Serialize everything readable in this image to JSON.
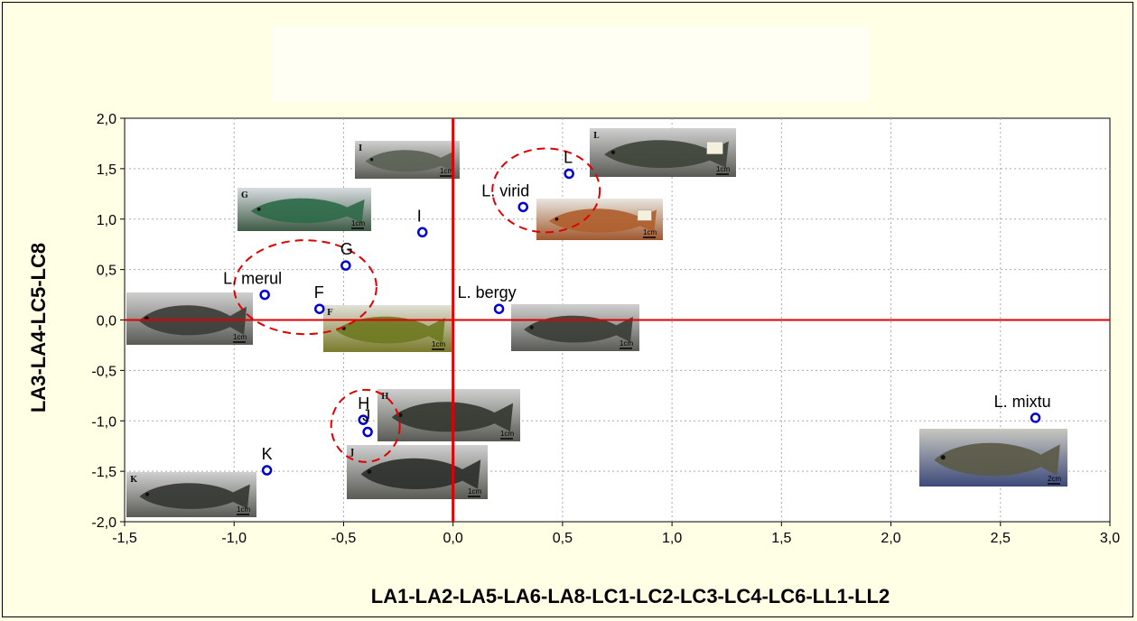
{
  "chart_data": {
    "type": "scatter",
    "title": "",
    "xlabel": "LA1-LA2-LA5-LA6-LA8-LC1-LC2-LC3-LC4-LC6-LL1-LL2",
    "ylabel": "LA3-LA4-LC5-LC8",
    "xlim": [
      -1.5,
      3.0
    ],
    "ylim": [
      -2.0,
      2.0
    ],
    "x_ticks": [
      "-1,5",
      "-1,0",
      "-0,5",
      "0,0",
      "0,5",
      "1,0",
      "1,5",
      "2,0",
      "2,5",
      "3,0"
    ],
    "y_ticks": [
      "2,0",
      "1,5",
      "1,0",
      "0,5",
      "0,0",
      "-0,5",
      "-1,0",
      "-1,5",
      "-2,0"
    ],
    "grid": true,
    "reference_lines": {
      "x": 0.0,
      "y": 0.0,
      "color": "#e00000"
    },
    "marker_color": "#0000cc",
    "points": [
      {
        "label": "L",
        "x": 0.53,
        "y": 1.45
      },
      {
        "label": "L. virid",
        "x": 0.32,
        "y": 1.12
      },
      {
        "label": "I",
        "x": -0.14,
        "y": 0.87
      },
      {
        "label": "G",
        "x": -0.49,
        "y": 0.54
      },
      {
        "label": "L. merul",
        "x": -0.86,
        "y": 0.25
      },
      {
        "label": "F",
        "x": -0.61,
        "y": 0.11
      },
      {
        "label": "L. bergy",
        "x": 0.21,
        "y": 0.11
      },
      {
        "label": "H",
        "x": -0.41,
        "y": -0.99
      },
      {
        "label": "J",
        "x": -0.39,
        "y": -1.11
      },
      {
        "label": "K",
        "x": -0.85,
        "y": -1.49
      },
      {
        "label": "L. mixtu",
        "x": 2.66,
        "y": -0.97
      }
    ],
    "groups": [
      {
        "name": "",
        "members": [
          "L",
          "L. virid"
        ]
      },
      {
        "name": "",
        "members": [
          "G",
          "L. merul",
          "F"
        ]
      },
      {
        "name": "",
        "members": [
          "H",
          "J"
        ]
      }
    ],
    "photo_tags": [
      {
        "letter": "I",
        "scale": "1cm"
      },
      {
        "letter": "L",
        "scale": "1cm"
      },
      {
        "letter": "G",
        "scale": "1cm"
      },
      {
        "letter": "",
        "scale": "1cm"
      },
      {
        "letter": "",
        "scale": "1cm"
      },
      {
        "letter": "F",
        "scale": "1cm"
      },
      {
        "letter": "",
        "scale": "1cm"
      },
      {
        "letter": "H",
        "scale": "1cm"
      },
      {
        "letter": "J",
        "scale": "1cm"
      },
      {
        "letter": "K",
        "scale": "1cm"
      },
      {
        "letter": "",
        "scale": "2cm"
      }
    ]
  }
}
